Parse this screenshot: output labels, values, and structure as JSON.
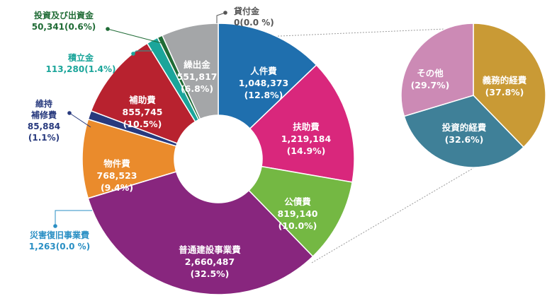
{
  "chart_data": [
    {
      "type": "pie",
      "donut": true,
      "title": "",
      "slices": [
        {
          "name": "人件費",
          "value": 1048373,
          "percent_label": "(12.8%)",
          "value_label": "1,048,373",
          "color": "#1f6fae",
          "label_placement": "inside"
        },
        {
          "name": "扶助費",
          "value": 1219184,
          "percent_label": "(14.9%)",
          "value_label": "1,219,184",
          "color": "#d9277c",
          "label_placement": "inside"
        },
        {
          "name": "公債費",
          "value": 819140,
          "percent_label": "(10.0%)",
          "value_label": "819,140",
          "color": "#74b843",
          "label_placement": "inside"
        },
        {
          "name": "普通建設事業費",
          "value": 2660487,
          "percent_label": "(32.5%)",
          "value_label": "2,660,487",
          "color": "#88267e",
          "label_placement": "inside"
        },
        {
          "name": "災害復旧事業費",
          "value": 1263,
          "percent_label": "(0.0 %)",
          "value_label": "1,263",
          "color": "#2a8fc4",
          "label_placement": "outside"
        },
        {
          "name": "物件費",
          "value": 768523,
          "percent_label": "(9.4%)",
          "value_label": "768,523",
          "color": "#ea8b2c",
          "label_placement": "inside"
        },
        {
          "name": "維持\n補修費",
          "value": 85884,
          "percent_label": "(1.1%)",
          "value_label": "85,884",
          "color": "#283a7e",
          "label_placement": "outside"
        },
        {
          "name": "補助費",
          "value": 855745,
          "percent_label": "(10.5%)",
          "value_label": "855,745",
          "color": "#b8222f",
          "label_placement": "inside"
        },
        {
          "name": "積立金",
          "value": 113280,
          "percent_label": "(1.4%)",
          "value_label": "113,280",
          "color": "#1ba59a",
          "label_placement": "outside"
        },
        {
          "name": "投資及び出資金",
          "value": 50341,
          "percent_label": "(0.6%)",
          "value_label": "50,341",
          "color": "#1f6b35",
          "label_placement": "outside"
        },
        {
          "name": "繰出金",
          "value": 551817,
          "percent_label": "(6.8%)",
          "value_label": "551,817",
          "color": "#a4a6a8",
          "label_placement": "inside"
        },
        {
          "name": "貸付金",
          "value": 0,
          "percent_label": "(0.0 %)",
          "value_label": "0",
          "color": "#555555",
          "label_placement": "outside"
        }
      ]
    },
    {
      "type": "pie",
      "title": "",
      "breakdown_of": "普通建設事業費",
      "slices": [
        {
          "name": "義務的経費",
          "percent": 37.8,
          "percent_label": "(37.8%)",
          "color": "#c99a35"
        },
        {
          "name": "投資的経費",
          "percent": 32.6,
          "percent_label": "(32.6%)",
          "color": "#3f8098"
        },
        {
          "name": "その他",
          "percent": 29.7,
          "percent_label": "(29.7%)",
          "color": "#cc8ab5"
        }
      ]
    }
  ]
}
